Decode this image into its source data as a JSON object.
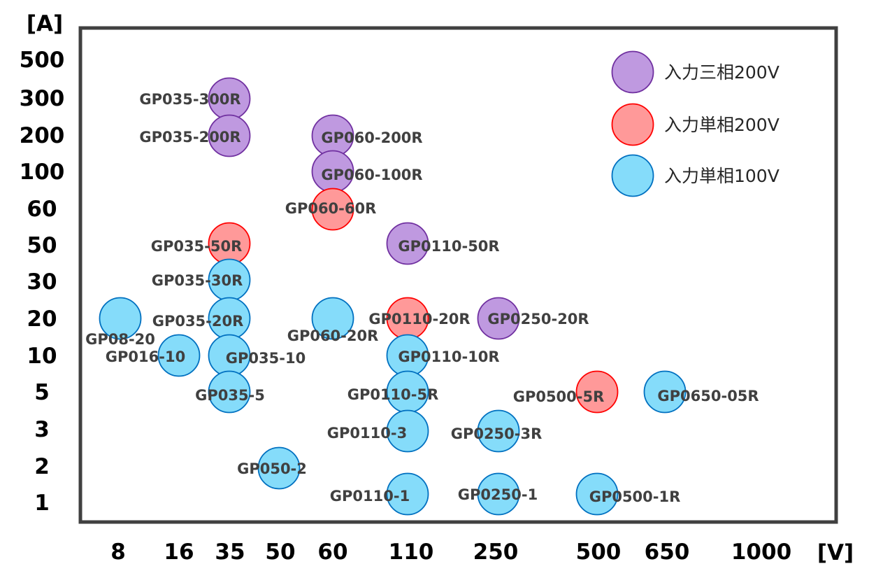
{
  "chart_data": {
    "type": "scatter",
    "xlabel": "[V]",
    "ylabel": "[A]",
    "x_ticks": [
      "8",
      "16",
      "35",
      "50",
      "60",
      "110",
      "250",
      "500",
      "650",
      "1000"
    ],
    "y_ticks": [
      "500",
      "300",
      "200",
      "100",
      "60",
      "50",
      "30",
      "20",
      "10",
      "5",
      "3",
      "2",
      "1"
    ],
    "series": [
      {
        "name": "入力三相200V",
        "color": "#bf99e0",
        "stroke": "#7030a0"
      },
      {
        "name": "入力単相200V",
        "color": "#ff9999",
        "stroke": "#ff0000"
      },
      {
        "name": "入力単相100V",
        "color": "#85dcfa",
        "stroke": "#0070c0"
      }
    ],
    "legend_position": "top-right",
    "grid": false,
    "points": [
      {
        "label": "GP035-300R",
        "x": "35",
        "y": "300",
        "series": 0
      },
      {
        "label": "GP035-200R",
        "x": "35",
        "y": "200",
        "series": 0
      },
      {
        "label": "GP060-200R",
        "x": "60",
        "y": "200",
        "series": 0
      },
      {
        "label": "GP060-100R",
        "x": "60",
        "y": "100",
        "series": 0
      },
      {
        "label": "GP0110-50R",
        "x": "110",
        "y": "50",
        "series": 0
      },
      {
        "label": "GP0250-20R",
        "x": "250",
        "y": "20",
        "series": 0
      },
      {
        "label": "GP060-60R",
        "x": "60",
        "y": "60",
        "series": 1
      },
      {
        "label": "GP035-50R",
        "x": "35",
        "y": "50",
        "series": 1
      },
      {
        "label": "GP0110-20R",
        "x": "110",
        "y": "20",
        "series": 1
      },
      {
        "label": "GP0500-5R",
        "x": "500",
        "y": "5",
        "series": 1
      },
      {
        "label": "GP035-30R",
        "x": "35",
        "y": "30",
        "series": 2
      },
      {
        "label": "GP08-20",
        "x": "8",
        "y": "20",
        "series": 2
      },
      {
        "label": "GP035-20R",
        "x": "35",
        "y": "20",
        "series": 2
      },
      {
        "label": "GP060-20R",
        "x": "60",
        "y": "20",
        "series": 2
      },
      {
        "label": "GP016-10",
        "x": "16",
        "y": "10",
        "series": 2
      },
      {
        "label": "GP035-10",
        "x": "35",
        "y": "10",
        "series": 2
      },
      {
        "label": "GP0110-10R",
        "x": "110",
        "y": "10",
        "series": 2
      },
      {
        "label": "GP035-5",
        "x": "35",
        "y": "5",
        "series": 2
      },
      {
        "label": "GP0110-5R",
        "x": "110",
        "y": "5",
        "series": 2
      },
      {
        "label": "GP0650-05R",
        "x": "650",
        "y": "5",
        "series": 2
      },
      {
        "label": "GP0110-3",
        "x": "110",
        "y": "3",
        "series": 2
      },
      {
        "label": "GP0250-3R",
        "x": "250",
        "y": "3",
        "series": 2
      },
      {
        "label": "GP050-2",
        "x": "50",
        "y": "2",
        "series": 2
      },
      {
        "label": "GP0110-1",
        "x": "110",
        "y": "1",
        "series": 2
      },
      {
        "label": "GP0250-1",
        "x": "250",
        "y": "1",
        "series": 2
      },
      {
        "label": "GP0500-1R",
        "x": "500",
        "y": "1",
        "series": 2
      }
    ]
  }
}
